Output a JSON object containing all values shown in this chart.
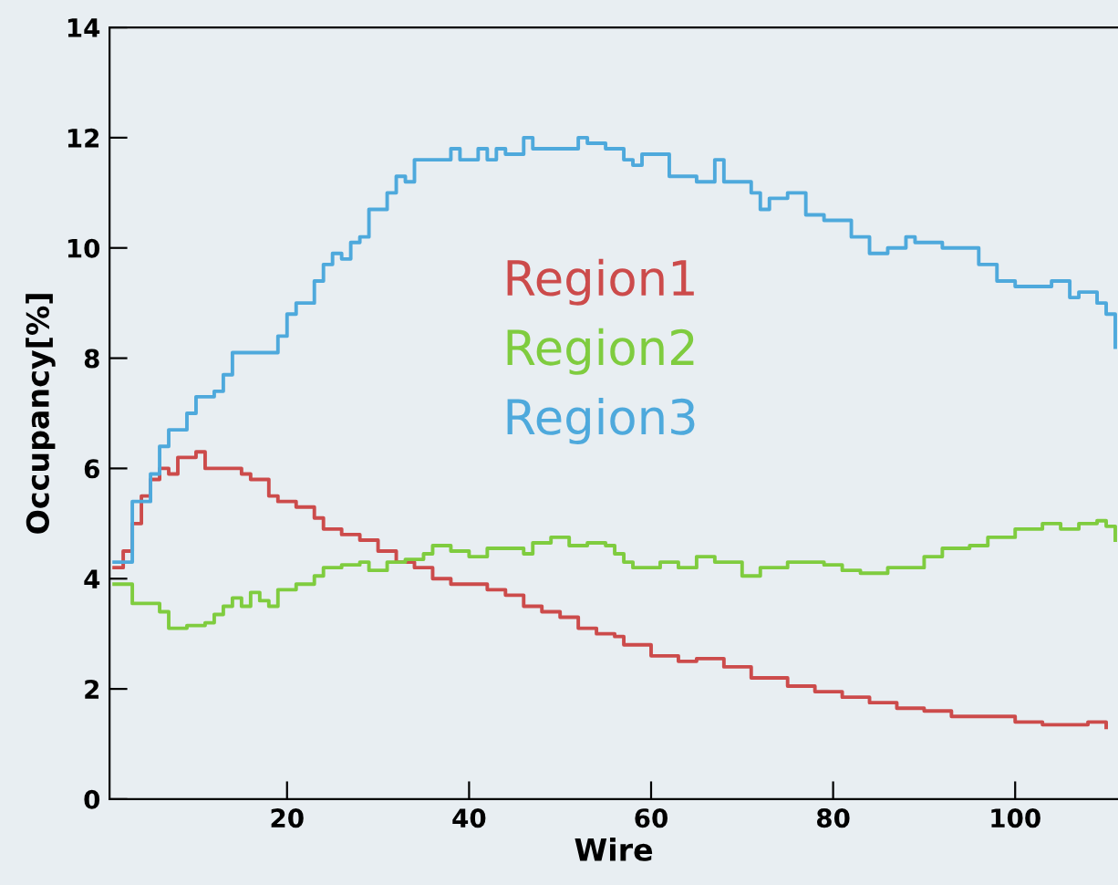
{
  "chart_data": {
    "type": "step",
    "xlabel": "Wire",
    "ylabel": "Occupancy[%]",
    "xlim": [
      0.5,
      111.3
    ],
    "ylim": [
      0,
      14
    ],
    "xticks": [
      20,
      40,
      60,
      80,
      100
    ],
    "yticks": [
      0,
      2,
      4,
      6,
      8,
      10,
      12,
      14
    ],
    "grid": false,
    "legend": false,
    "series": [
      {
        "name": "Region1",
        "color": "#cc4b4b",
        "x": [
          1,
          2,
          3,
          4,
          5,
          6,
          7,
          8,
          10,
          11,
          13,
          15,
          16,
          18,
          19,
          21,
          23,
          24,
          26,
          28,
          30,
          32,
          34,
          36,
          38,
          40,
          42,
          44,
          46,
          48,
          50,
          52,
          54,
          56,
          57,
          60,
          63,
          65,
          68,
          71,
          75,
          78,
          81,
          84,
          87,
          90,
          93,
          97,
          100,
          103,
          106,
          108,
          110
        ],
        "values": [
          4.2,
          4.5,
          5.0,
          5.5,
          5.8,
          6.0,
          5.9,
          6.2,
          6.3,
          6.0,
          6.0,
          5.9,
          5.8,
          5.5,
          5.4,
          5.3,
          5.1,
          4.9,
          4.8,
          4.7,
          4.5,
          4.3,
          4.2,
          4.0,
          3.9,
          3.9,
          3.8,
          3.7,
          3.5,
          3.4,
          3.3,
          3.1,
          3.0,
          2.95,
          2.8,
          2.6,
          2.5,
          2.55,
          2.4,
          2.2,
          2.05,
          1.95,
          1.85,
          1.75,
          1.65,
          1.6,
          1.5,
          1.5,
          1.4,
          1.35,
          1.35,
          1.4,
          1.3
        ]
      },
      {
        "name": "Region2",
        "color": "#7fcc3f",
        "x": [
          1,
          3,
          6,
          7,
          9,
          11,
          12,
          13,
          14,
          15,
          16,
          17,
          18,
          19,
          21,
          23,
          24,
          26,
          28,
          29,
          31,
          33,
          35,
          36,
          38,
          40,
          42,
          44,
          46,
          47,
          49,
          51,
          53,
          55,
          56,
          57,
          58,
          61,
          63,
          65,
          67,
          70,
          72,
          75,
          79,
          81,
          83,
          86,
          89,
          90,
          92,
          95,
          97,
          100,
          103,
          105,
          107,
          109,
          110,
          111
        ],
        "values": [
          3.9,
          3.55,
          3.4,
          3.1,
          3.15,
          3.2,
          3.35,
          3.5,
          3.65,
          3.5,
          3.75,
          3.6,
          3.5,
          3.8,
          3.9,
          4.05,
          4.2,
          4.25,
          4.3,
          4.15,
          4.3,
          4.35,
          4.45,
          4.6,
          4.5,
          4.4,
          4.55,
          4.55,
          4.45,
          4.65,
          4.75,
          4.6,
          4.65,
          4.6,
          4.45,
          4.3,
          4.2,
          4.3,
          4.2,
          4.4,
          4.3,
          4.05,
          4.2,
          4.3,
          4.25,
          4.15,
          4.1,
          4.2,
          4.2,
          4.4,
          4.55,
          4.6,
          4.75,
          4.9,
          5.0,
          4.9,
          5.0,
          5.05,
          4.95,
          4.7
        ]
      },
      {
        "name": "Region3",
        "color": "#4ea9dc",
        "x": [
          1,
          3,
          5,
          6,
          7,
          9,
          10,
          12,
          13,
          14,
          17,
          19,
          20,
          21,
          23,
          24,
          25,
          26,
          27,
          28,
          29,
          31,
          32,
          33,
          34,
          36,
          38,
          39,
          41,
          42,
          43,
          44,
          46,
          47,
          49,
          52,
          53,
          55,
          57,
          58,
          59,
          61,
          62,
          65,
          67,
          68,
          71,
          72,
          73,
          75,
          77,
          79,
          82,
          84,
          86,
          88,
          89,
          92,
          95,
          96,
          98,
          100,
          104,
          106,
          107,
          109,
          110,
          111
        ],
        "values": [
          4.3,
          5.4,
          5.9,
          6.4,
          6.7,
          7.0,
          7.3,
          7.4,
          7.7,
          8.1,
          8.1,
          8.4,
          8.8,
          9.0,
          9.4,
          9.7,
          9.9,
          9.8,
          10.1,
          10.2,
          10.7,
          11.0,
          11.3,
          11.2,
          11.6,
          11.6,
          11.8,
          11.6,
          11.8,
          11.6,
          11.8,
          11.7,
          12.0,
          11.8,
          11.8,
          12.0,
          11.9,
          11.8,
          11.6,
          11.5,
          11.7,
          11.7,
          11.3,
          11.2,
          11.6,
          11.2,
          11.0,
          10.7,
          10.9,
          11.0,
          10.6,
          10.5,
          10.2,
          9.9,
          10.0,
          10.2,
          10.1,
          10.0,
          10.0,
          9.7,
          9.4,
          9.3,
          9.4,
          9.1,
          9.2,
          9.0,
          8.8,
          8.2
        ]
      }
    ]
  }
}
